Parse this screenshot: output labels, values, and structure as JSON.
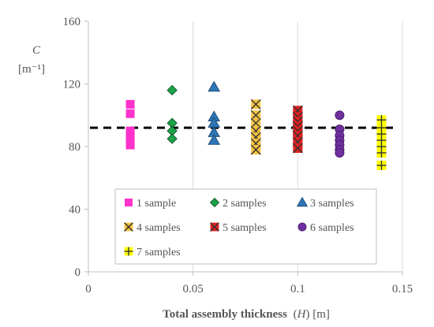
{
  "chart_data": {
    "type": "scatter",
    "ylabel_var": "C",
    "ylabel_unit": "[m⁻¹]",
    "xlabel_bold": "Total assembly thickness",
    "xlabel_paren": "(",
    "xlabel_var": "H",
    "xlabel_rest": ") [m]",
    "xlim": [
      0,
      0.15
    ],
    "ylim": [
      0,
      160
    ],
    "xticks": [
      0,
      0.05,
      0.1,
      0.15
    ],
    "xtick_labels": [
      "0",
      "0.05",
      "0.1",
      "0.15"
    ],
    "yticks": [
      0,
      40,
      80,
      120,
      160
    ],
    "ytick_labels": [
      "0",
      "40",
      "80",
      "120",
      "160"
    ],
    "grid": "vertical",
    "reference_line_y": 92,
    "legend_position": "bottom-inside",
    "series": [
      {
        "name": "1 sample",
        "marker": "square",
        "color": "#ff33cc",
        "x": [
          0.02,
          0.02,
          0.02,
          0.02,
          0.02,
          0.02
        ],
        "y": [
          107,
          101,
          90,
          86,
          83,
          81
        ]
      },
      {
        "name": "2 samples",
        "marker": "diamond",
        "color": "#1aa34a",
        "x": [
          0.04,
          0.04,
          0.04,
          0.04
        ],
        "y": [
          116,
          95,
          90,
          85
        ]
      },
      {
        "name": "3 samples",
        "marker": "triangle",
        "color": "#2e75b6",
        "x": [
          0.06,
          0.06,
          0.06,
          0.06,
          0.06
        ],
        "y": [
          118,
          99,
          95,
          89,
          84
        ]
      },
      {
        "name": "4 samples",
        "marker": "xsquare",
        "color": "#f5c242",
        "x": [
          0.08,
          0.08,
          0.08,
          0.08,
          0.08,
          0.08,
          0.08
        ],
        "y": [
          107,
          100,
          95,
          90,
          86,
          82,
          78
        ]
      },
      {
        "name": "5 samples",
        "marker": "xsquare",
        "color": "#e02020",
        "x": [
          0.1,
          0.1,
          0.1,
          0.1,
          0.1,
          0.1,
          0.1,
          0.1
        ],
        "y": [
          103,
          99,
          96,
          93,
          90,
          87,
          83,
          79
        ]
      },
      {
        "name": "6 samples",
        "marker": "circle",
        "color": "#7030a0",
        "x": [
          0.12,
          0.12,
          0.12,
          0.12,
          0.12,
          0.12,
          0.12
        ],
        "y": [
          100,
          91,
          87,
          84,
          81,
          78,
          76
        ]
      },
      {
        "name": "7 samples",
        "marker": "plus",
        "color": "#ffff00",
        "x": [
          0.14,
          0.14,
          0.14,
          0.14,
          0.14,
          0.14,
          0.14
        ],
        "y": [
          97,
          92,
          88,
          84,
          80,
          76,
          68
        ]
      }
    ]
  }
}
